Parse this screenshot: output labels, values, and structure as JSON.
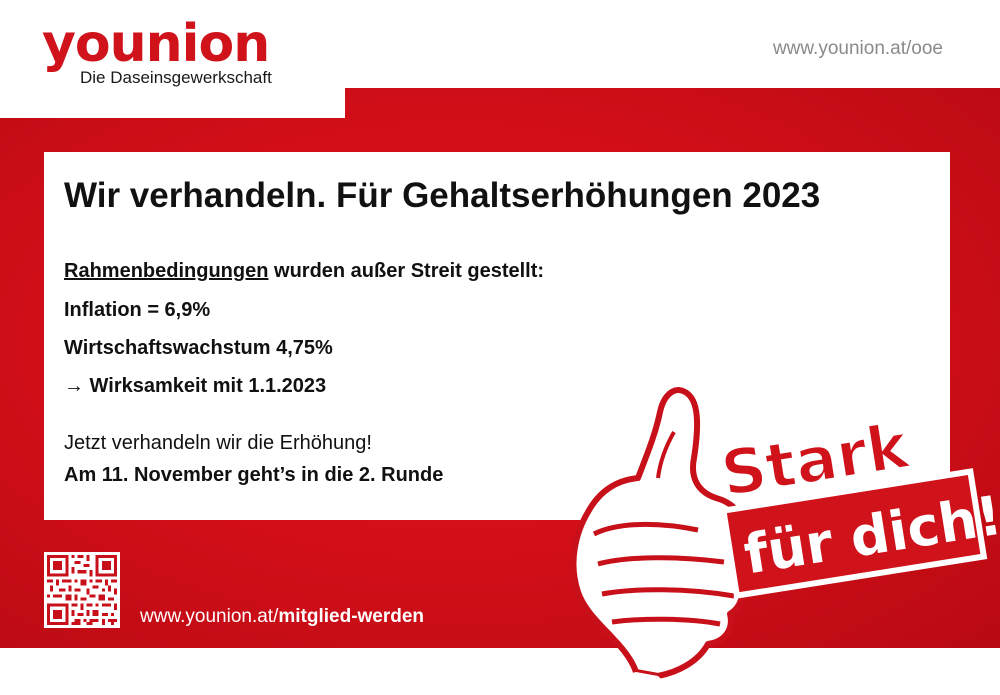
{
  "brand": {
    "name": "younion",
    "tagline": "Die Daseinsgewerkschaft",
    "color": "#d0121b"
  },
  "header": {
    "url": "www.younion.at/ooe"
  },
  "content": {
    "headline": "Wir verhandeln. Für Gehaltserhöhungen 2023",
    "conditions_underlined": "Rahmenbedingungen",
    "conditions_rest": " wurden außer Streit gestellt:",
    "inflation": "Inflation = 6,9%",
    "growth": "Wirtschaftswachstum  4,75%",
    "effective_arrow": "→",
    "effective": " Wirksamkeit mit 1.1.2023",
    "negotiate": "Jetzt verhandeln wir die Erhöhung!",
    "round": "Am 11. November geht’s in die 2. Runde"
  },
  "footer": {
    "url_prefix": "www.younion.at/",
    "url_bold": "mitglied-werden"
  },
  "badge": {
    "line1": "Stark",
    "line2": "für dich!",
    "icon": "thumbs-up-icon"
  }
}
